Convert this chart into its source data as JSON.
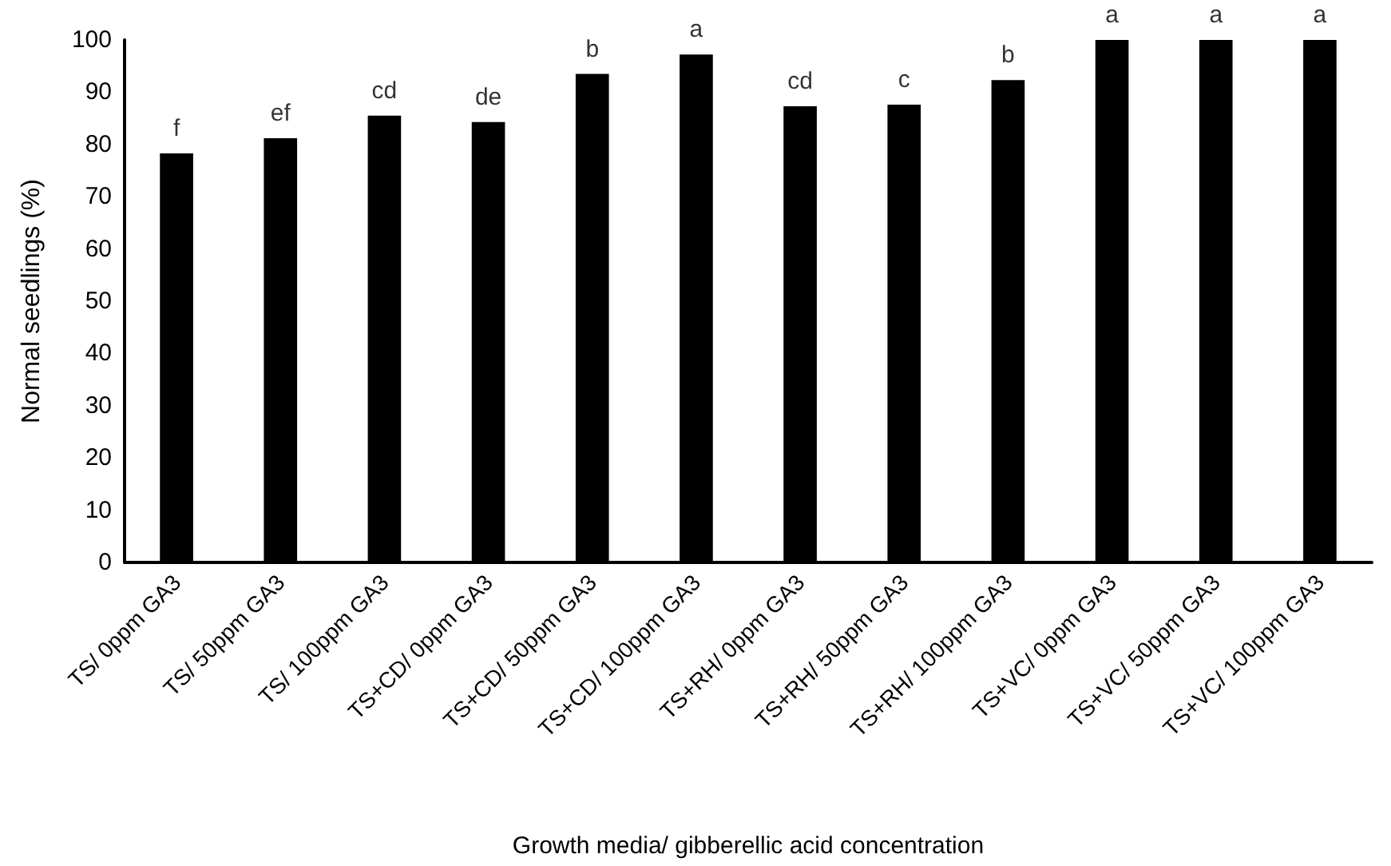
{
  "chart_data": {
    "type": "bar",
    "xlabel": "Growth media/ gibberellic acid concentration",
    "ylabel": "Normal seedlings (%)",
    "categories": [
      "TS/ 0ppm GA3",
      "TS/ 50ppm GA3",
      "TS/ 100ppm GA3",
      "TS+CD/ 0ppm GA3",
      "TS+CD/ 50ppm GA3",
      "TS+CD/ 100ppm GA3",
      "TS+RH/ 0ppm GA3",
      "TS+RH/ 50ppm GA3",
      "TS+RH/ 100ppm GA3",
      "TS+VC/ 0ppm GA3",
      "TS+VC/ 50ppm GA3",
      "TS+VC/ 100ppm GA3"
    ],
    "values": [
      78.3,
      81.2,
      85.5,
      84.3,
      93.5,
      97.2,
      87.3,
      87.6,
      92.3,
      100,
      100,
      100
    ],
    "color": "#000000",
    "ylim": [
      0,
      100
    ],
    "yticks": [
      0,
      10,
      20,
      30,
      40,
      50,
      60,
      70,
      80,
      90,
      100
    ],
    "grid": false,
    "annotations": [
      {
        "text": "f",
        "x": "TS/ 0ppm GA3",
        "y": 78.3
      },
      {
        "text": "ef",
        "x": "TS/ 50ppm GA3",
        "y": 81.2
      },
      {
        "text": "cd",
        "x": "TS/ 100ppm GA3",
        "y": 85.5
      },
      {
        "text": "de",
        "x": "TS+CD/ 0ppm GA3",
        "y": 84.3
      },
      {
        "text": "b",
        "x": "TS+CD/ 50ppm GA3",
        "y": 93.5
      },
      {
        "text": "a",
        "x": "TS+CD/ 100ppm GA3",
        "y": 97.2
      },
      {
        "text": "cd",
        "x": "TS+RH/ 0ppm GA3",
        "y": 87.3
      },
      {
        "text": "c",
        "x": "TS+RH/ 50ppm GA3",
        "y": 87.6
      },
      {
        "text": "b",
        "x": "TS+RH/ 100ppm GA3",
        "y": 92.3
      },
      {
        "text": "a",
        "x": "TS+VC/ 0ppm GA3",
        "y": 100
      },
      {
        "text": "a",
        "x": "TS+VC/ 50ppm GA3",
        "y": 100
      },
      {
        "text": "a",
        "x": "TS+VC/ 100ppm GA3",
        "y": 100
      }
    ]
  }
}
